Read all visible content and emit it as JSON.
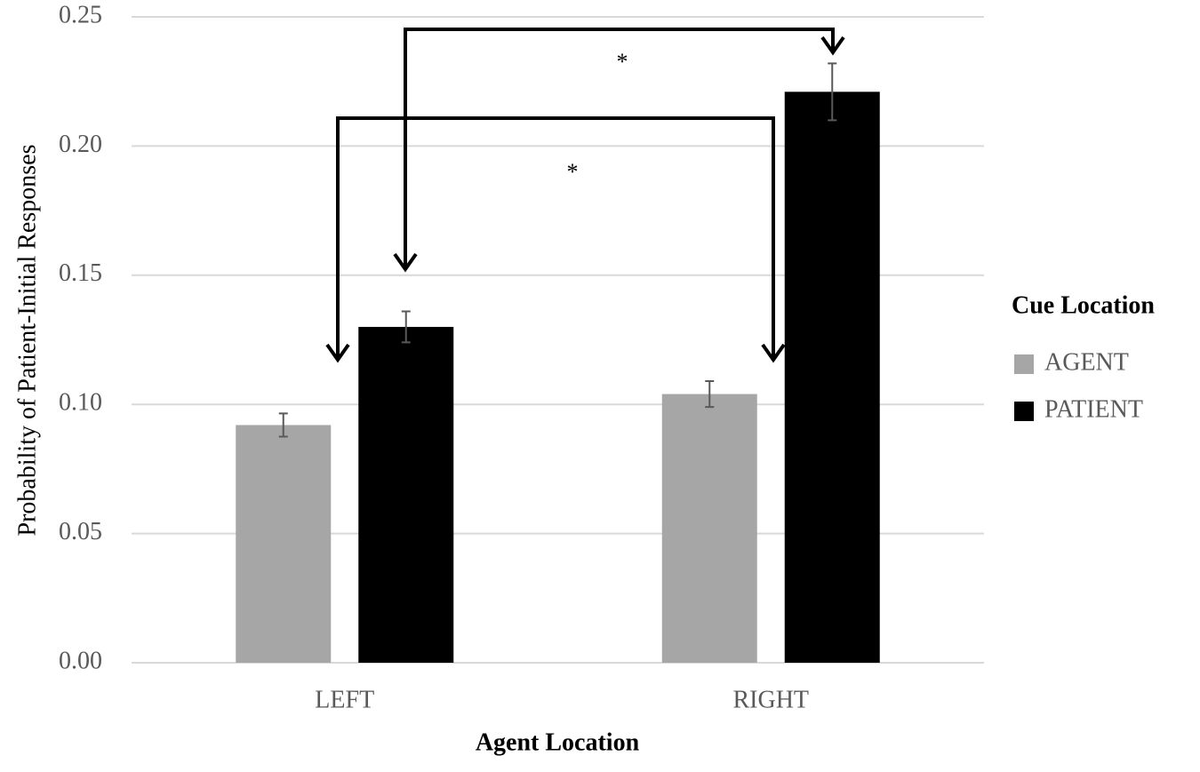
{
  "chart_data": {
    "type": "bar",
    "x_label": "Agent Location",
    "y_label": "Probability of Patient-Initial Responses",
    "categories": [
      "LEFT",
      "RIGHT"
    ],
    "series": [
      {
        "name": "AGENT",
        "color": "#a6a6a6",
        "values": [
          0.092,
          0.104
        ],
        "errors": [
          0.0045,
          0.005
        ]
      },
      {
        "name": "PATIENT",
        "color": "#000000",
        "values": [
          0.13,
          0.221
        ],
        "errors": [
          0.006,
          0.011
        ]
      }
    ],
    "ylim": [
      0,
      0.25
    ],
    "yticks": [
      {
        "value": 0,
        "label": "0.00"
      },
      {
        "value": 0.05,
        "label": "0.05"
      },
      {
        "value": 0.1,
        "label": "0.10"
      },
      {
        "value": 0.15,
        "label": "0.15"
      },
      {
        "value": 0.2,
        "label": "0.20"
      },
      {
        "value": 0.25,
        "label": "0.25"
      }
    ],
    "grid": true,
    "legend_title": "Cue Location",
    "legend_position": "right",
    "annotations": [
      "*",
      "*"
    ]
  }
}
